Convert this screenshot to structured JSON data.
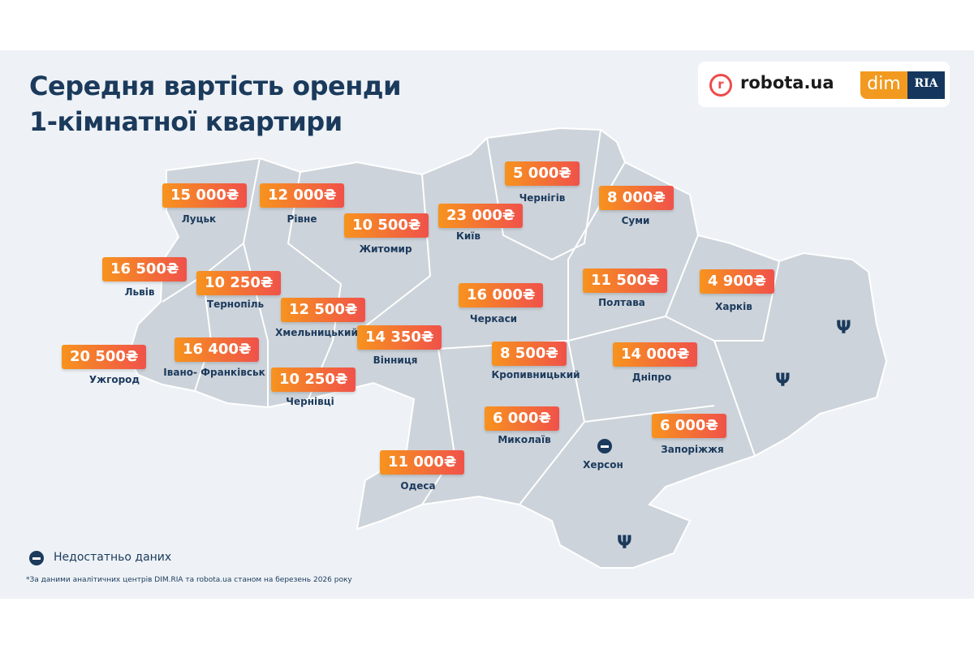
{
  "title_line1": "Середня вартість оренди",
  "title_line2": "1-кімнатної квартири",
  "logos": {
    "robota": "robota.ua",
    "robota_icon": "r",
    "dim": "dim",
    "ria": "RIA"
  },
  "regions": [
    {
      "city": "Луцьк",
      "price": "15 000₴"
    },
    {
      "city": "Рівне",
      "price": "12 000₴"
    },
    {
      "city": "Житомир",
      "price": "10 500₴"
    },
    {
      "city": "Київ",
      "price": "23 000₴"
    },
    {
      "city": "Чернігів",
      "price": "5 000₴"
    },
    {
      "city": "Суми",
      "price": "8 000₴"
    },
    {
      "city": "Львів",
      "price": "16 500₴"
    },
    {
      "city": "Тернопіль",
      "price": "10 250₴"
    },
    {
      "city": "Хмельницький",
      "price": "12 500₴"
    },
    {
      "city": "Вінниця",
      "price": "14 350₴"
    },
    {
      "city": "Черкаси",
      "price": "16 000₴"
    },
    {
      "city": "Полтава",
      "price": "11 500₴"
    },
    {
      "city": "Харків",
      "price": "4 900₴"
    },
    {
      "city": "Ужгород",
      "price": "20 500₴"
    },
    {
      "city": "Івано- Франківськ",
      "price": "16 400₴"
    },
    {
      "city": "Чернівці",
      "price": "10 250₴"
    },
    {
      "city": "Кропивницький",
      "price": "8 500₴"
    },
    {
      "city": "Дніпро",
      "price": "14 000₴"
    },
    {
      "city": "Миколаїв",
      "price": "6 000₴"
    },
    {
      "city": "Запоріжжя",
      "price": "6 000₴"
    },
    {
      "city": "Одеса",
      "price": "11 000₴"
    }
  ],
  "no_data_regions": [
    {
      "city": "Херсон"
    }
  ],
  "legend": {
    "no_data_label": "Недостатньо даних",
    "icon": "minus-circle-icon"
  },
  "footnote": "*За даними аналітичних центрів DIM.RIA та robota.ua станом на березень 2026 року",
  "colors": {
    "accent_start": "#f7931e",
    "accent_end": "#f0524a",
    "text": "#1b3a5c",
    "map": "#cdd3da",
    "background": "#eef2f6"
  }
}
